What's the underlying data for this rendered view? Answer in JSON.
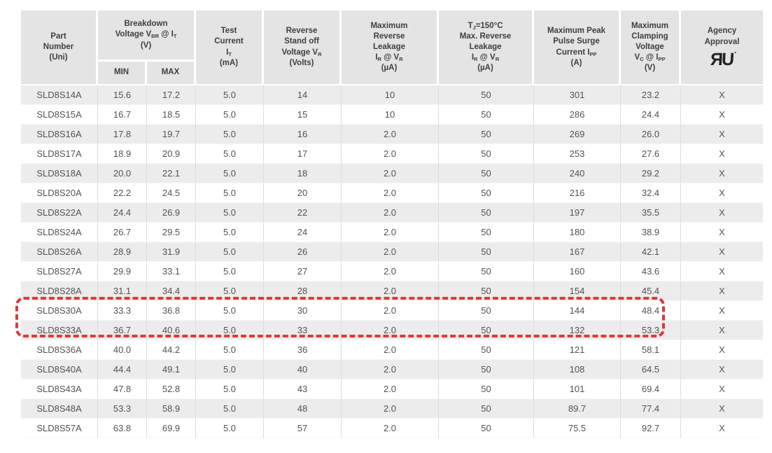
{
  "colors": {
    "header_bg": "#e4e4e4",
    "row_stripe": "#ececec",
    "row_white": "#ffffff",
    "text": "#525252",
    "grid_line": "#dcdcdc",
    "highlight_red": "#dd3a3a"
  },
  "table": {
    "header": {
      "part": "Part\nNumber\n(Uni)",
      "breakdown": "Breakdown\nVoltage V~BR~ @ I~T~\n(V)",
      "min": "MIN",
      "max": "MAX",
      "test_current": "Test\nCurrent\nI~T~\n(mA)",
      "standoff": "Reverse\nStand off\nVoltage V~R~\n(Volts)",
      "max_leakage": "Maximum\nReverse\nLeakage\nI~R~ @ V~R~\n(µA)",
      "tj_leakage": "T~J~=150°C\nMax. Reverse\nLeakage\nI~R~ @ V~R~\n(µA)",
      "surge": "Maximum Peak\nPulse Surge\nCurrent I~PP~\n(A)",
      "clamping": "Maximum\nClamping\nVoltage\nV~C~ @ I~PP~\n(V)",
      "agency": "Agency\nApproval",
      "agency_logo": "ЯU",
      "agency_logo_name": "UL Recognized Component mark"
    },
    "rows": [
      [
        "SLD8S14A",
        "15.6",
        "17.2",
        "5.0",
        "14",
        "10",
        "50",
        "301",
        "23.2",
        "X"
      ],
      [
        "SLD8S15A",
        "16.7",
        "18.5",
        "5.0",
        "15",
        "10",
        "50",
        "286",
        "24.4",
        "X"
      ],
      [
        "SLD8S16A",
        "17.8",
        "19.7",
        "5.0",
        "16",
        "2.0",
        "50",
        "269",
        "26.0",
        "X"
      ],
      [
        "SLD8S17A",
        "18.9",
        "20.9",
        "5.0",
        "17",
        "2.0",
        "50",
        "253",
        "27.6",
        "X"
      ],
      [
        "SLD8S18A",
        "20.0",
        "22.1",
        "5.0",
        "18",
        "2.0",
        "50",
        "240",
        "29.2",
        "X"
      ],
      [
        "SLD8S20A",
        "22.2",
        "24.5",
        "5.0",
        "20",
        "2.0",
        "50",
        "216",
        "32.4",
        "X"
      ],
      [
        "SLD8S22A",
        "24.4",
        "26.9",
        "5.0",
        "22",
        "2.0",
        "50",
        "197",
        "35.5",
        "X"
      ],
      [
        "SLD8S24A",
        "26.7",
        "29.5",
        "5.0",
        "24",
        "2.0",
        "50",
        "180",
        "38.9",
        "X"
      ],
      [
        "SLD8S26A",
        "28.9",
        "31.9",
        "5.0",
        "26",
        "2.0",
        "50",
        "167",
        "42.1",
        "X"
      ],
      [
        "SLD8S27A",
        "29.9",
        "33.1",
        "5.0",
        "27",
        "2.0",
        "50",
        "160",
        "43.6",
        "X"
      ],
      [
        "SLD8S28A",
        "31.1",
        "34.4",
        "5.0",
        "28",
        "2.0",
        "50",
        "154",
        "45.4",
        "X"
      ],
      [
        "SLD8S30A",
        "33.3",
        "36.8",
        "5.0",
        "30",
        "2.0",
        "50",
        "144",
        "48.4",
        "X"
      ],
      [
        "SLD8S33A",
        "36.7",
        "40.6",
        "5.0",
        "33",
        "2.0",
        "50",
        "132",
        "53.3",
        "X"
      ],
      [
        "SLD8S36A",
        "40.0",
        "44.2",
        "5.0",
        "36",
        "2.0",
        "50",
        "121",
        "58.1",
        "X"
      ],
      [
        "SLD8S40A",
        "44.4",
        "49.1",
        "5.0",
        "40",
        "2.0",
        "50",
        "108",
        "64.5",
        "X"
      ],
      [
        "SLD8S43A",
        "47.8",
        "52.8",
        "5.0",
        "43",
        "2.0",
        "50",
        "101",
        "69.4",
        "X"
      ],
      [
        "SLD8S48A",
        "53.3",
        "58.9",
        "5.0",
        "48",
        "2.0",
        "50",
        "89.7",
        "77.4",
        "X"
      ],
      [
        "SLD8S57A",
        "63.8",
        "69.9",
        "5.0",
        "57",
        "2.0",
        "50",
        "75.5",
        "92.7",
        "X"
      ]
    ],
    "highlight": {
      "first_row": "SLD8S30A",
      "last_row": "SLD8S33A",
      "color": "#dd3a3a"
    }
  }
}
